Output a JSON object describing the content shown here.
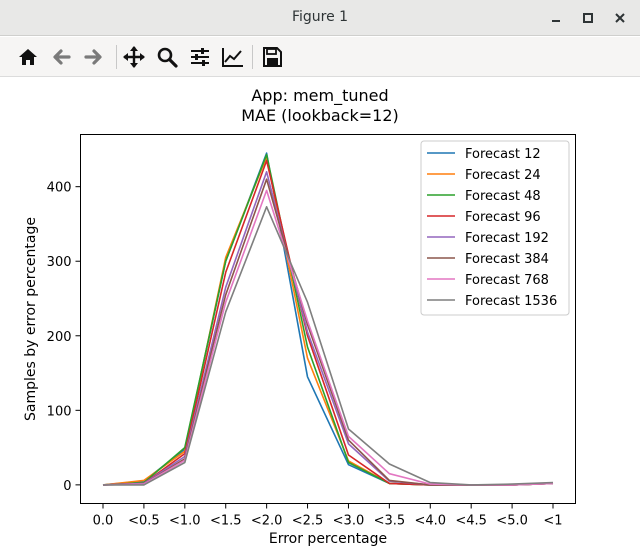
{
  "window": {
    "title": "Figure 1"
  },
  "toolbar": {
    "buttons": [
      "home-icon",
      "back-icon",
      "forward-icon",
      "pan-icon",
      "zoom-icon",
      "configure-subplots-icon",
      "edit-axis-icon",
      "save-icon"
    ]
  },
  "chart_data": {
    "type": "line",
    "title_line1": "App: mem_tuned",
    "title_line2": "MAE (lookback=12)",
    "xlabel": "Error percentage",
    "ylabel": "Samples by error percentage",
    "categories": [
      "0.0",
      "<0.5",
      "<1.0",
      "<1.5",
      "<2.0",
      "<2.5",
      "<3.0",
      "<3.5",
      "<4.0",
      "<4.5",
      "<5.0",
      "<1"
    ],
    "ylim": [
      -25,
      470
    ],
    "yticks": [
      0,
      100,
      200,
      300,
      400
    ],
    "legend_position": "top-right",
    "series": [
      {
        "name": "Forecast 12",
        "color": "#1f77b4",
        "values": [
          0,
          5,
          48,
          300,
          445,
          145,
          27,
          2,
          0,
          0,
          0,
          2
        ]
      },
      {
        "name": "Forecast 24",
        "color": "#ff7f0e",
        "values": [
          0,
          6,
          45,
          305,
          440,
          170,
          32,
          2,
          0,
          0,
          0,
          2
        ]
      },
      {
        "name": "Forecast 48",
        "color": "#2ca02c",
        "values": [
          0,
          3,
          50,
          300,
          443,
          185,
          30,
          2,
          0,
          0,
          0,
          2
        ]
      },
      {
        "name": "Forecast 96",
        "color": "#d62728",
        "values": [
          0,
          2,
          42,
          285,
          435,
          200,
          40,
          2,
          0,
          0,
          0,
          2
        ]
      },
      {
        "name": "Forecast 192",
        "color": "#9467bd",
        "values": [
          0,
          2,
          38,
          265,
          420,
          205,
          55,
          5,
          0,
          0,
          0,
          2
        ]
      },
      {
        "name": "Forecast 384",
        "color": "#8c564b",
        "values": [
          0,
          1,
          35,
          255,
          410,
          215,
          60,
          6,
          0,
          0,
          0,
          2
        ]
      },
      {
        "name": "Forecast 768",
        "color": "#e377c2",
        "values": [
          0,
          1,
          33,
          245,
          395,
          220,
          65,
          15,
          1,
          0,
          0,
          2
        ]
      },
      {
        "name": "Forecast 1536",
        "color": "#7f7f7f",
        "values": [
          0,
          0,
          30,
          232,
          373,
          245,
          75,
          28,
          3,
          0,
          1,
          3
        ]
      }
    ]
  }
}
